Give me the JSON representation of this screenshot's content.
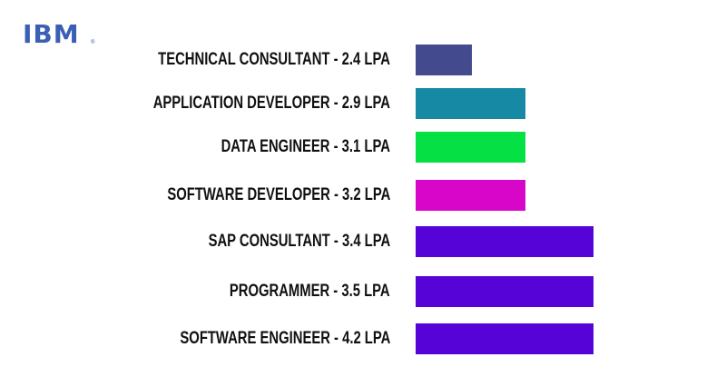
{
  "logo": {
    "text": "IBM",
    "reg": "®"
  },
  "chart_data": {
    "type": "bar",
    "orientation": "horizontal",
    "title": "",
    "xlabel": "",
    "ylabel": "",
    "categories": [
      "TECHNICAL CONSULTANT - 2.4 LPA",
      "APPLICATION DEVELOPER - 2.9 LPA",
      "DATA ENGINEER - 3.1 LPA",
      "SOFTWARE DEVELOPER - 3.2 LPA",
      "SAP CONSULTANT - 3.4 LPA",
      "PROGRAMMER - 3.5 LPA",
      "SOFTWARE ENGINEER - 4.2 LPA"
    ],
    "values": [
      2.4,
      2.9,
      3.1,
      3.2,
      3.4,
      3.5,
      4.2
    ],
    "unit": "LPA",
    "colors": [
      "#434a8e",
      "#1689a4",
      "#05e044",
      "#d806c8",
      "#5603d8",
      "#5603d8",
      "#5603d8"
    ],
    "grid": false,
    "legend": "none"
  }
}
